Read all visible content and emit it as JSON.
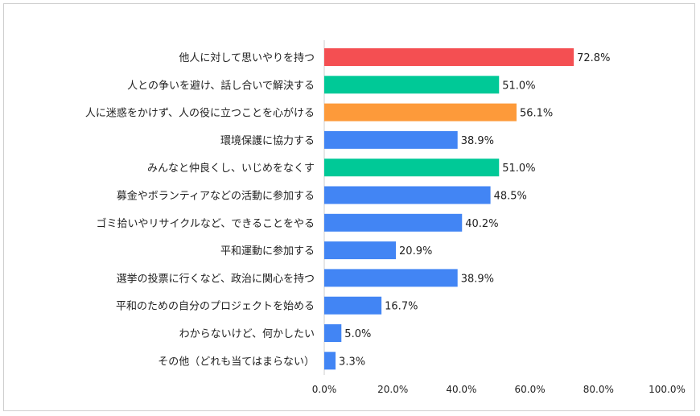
{
  "chart_data": {
    "type": "bar",
    "orientation": "horizontal",
    "categories": [
      "他人に対して思いやりを持つ",
      "人との争いを避け、話し合いで解決する",
      "人に迷惑をかけず、人の役に立つことを心がける",
      "環境保護に協力する",
      "みんなと仲良くし、いじめをなくす",
      "募金やボランティアなどの活動に参加する",
      "ゴミ拾いやリサイクルなど、できることをやる",
      "平和運動に参加する",
      "選挙の投票に行くなど、政治に関心を持つ",
      "平和のための自分のプロジェクトを始める",
      "わからないけど、何かしたい",
      "その他（どれも当てはまらない）"
    ],
    "values": [
      72.8,
      51.0,
      56.1,
      38.9,
      51.0,
      48.5,
      40.2,
      20.9,
      38.9,
      16.7,
      5.0,
      3.3
    ],
    "value_labels": [
      "72.8%",
      "51.0%",
      "56.1%",
      "38.9%",
      "51.0%",
      "48.5%",
      "40.2%",
      "20.9%",
      "38.9%",
      "16.7%",
      "5.0%",
      "3.3%"
    ],
    "bar_colors": [
      "#f44f52",
      "#00c997",
      "#fd9a3a",
      "#4285f4",
      "#00c997",
      "#4285f4",
      "#4285f4",
      "#4285f4",
      "#4285f4",
      "#4285f4",
      "#4285f4",
      "#4285f4"
    ],
    "xlim": [
      0,
      100
    ],
    "x_ticks": [
      "0.0%",
      "20.0%",
      "40.0%",
      "60.0%",
      "80.0%",
      "100.0%"
    ],
    "grid": false
  }
}
